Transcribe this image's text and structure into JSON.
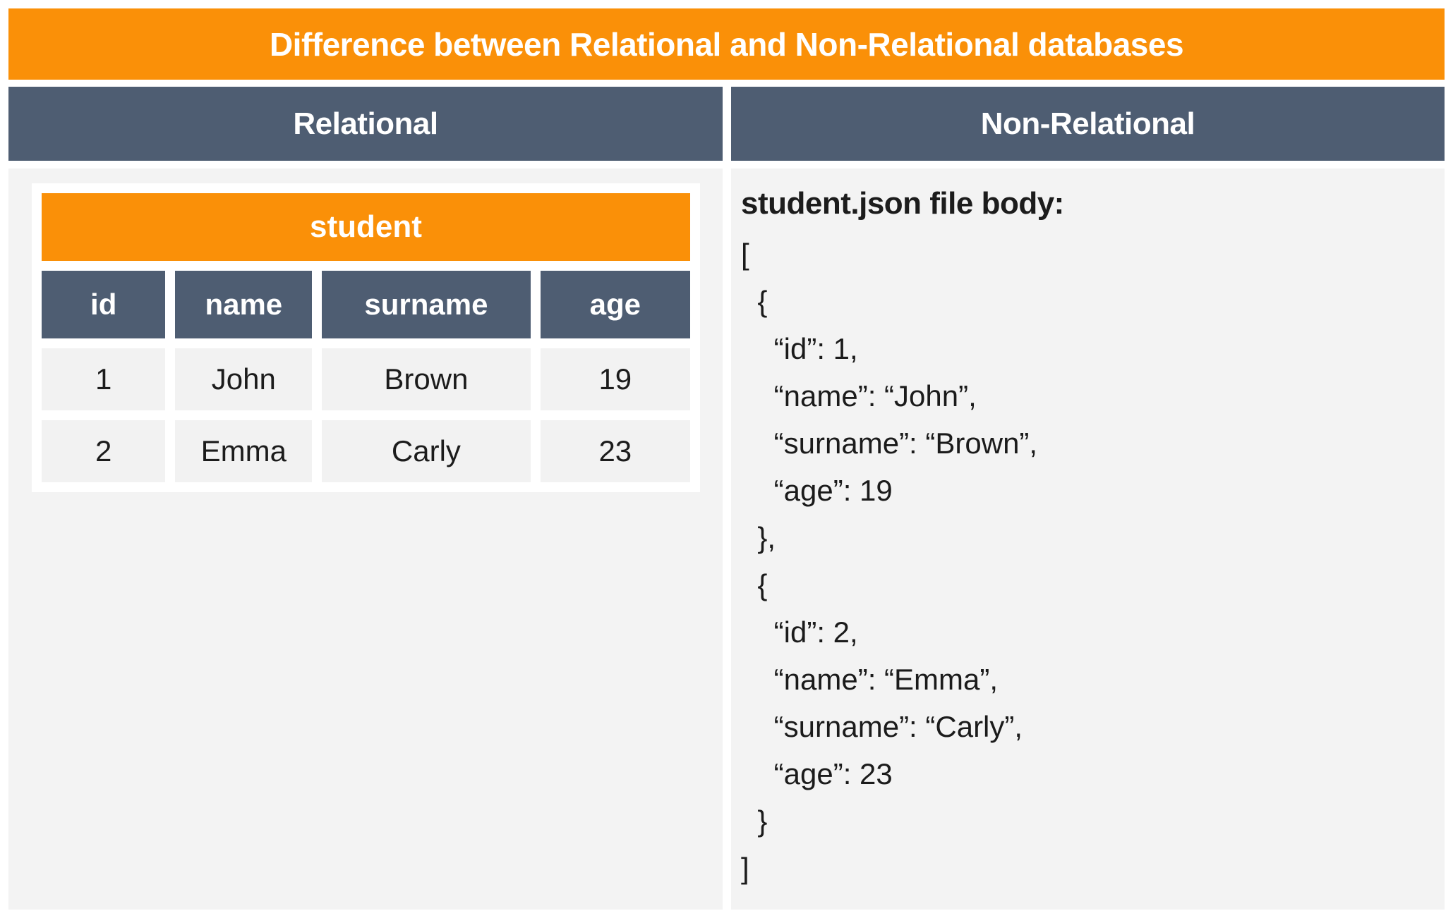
{
  "title": "Difference between Relational and Non-Relational databases",
  "colors": {
    "accent_orange": "#fa9008",
    "header_slate": "#4e5d72",
    "panel_gray": "#f3f3f3",
    "cell_gray": "#f2f2f2",
    "text_dark": "#1c1c1c",
    "white": "#ffffff"
  },
  "columns": {
    "left_header": "Relational",
    "right_header": "Non-Relational"
  },
  "relational": {
    "table_title": "student",
    "headers": [
      "id",
      "name",
      "surname",
      "age"
    ],
    "rows": [
      [
        "1",
        "John",
        "Brown",
        "19"
      ],
      [
        "2",
        "Emma",
        "Carly",
        "23"
      ]
    ]
  },
  "non_relational": {
    "heading": "student.json file body:",
    "json_lines": [
      "[",
      "  {",
      "    “id”: 1,",
      "    “name”: “John”,",
      "    “surname”: “Brown”,",
      "    “age”: 19",
      "  },",
      "  {",
      "    “id”: 2,",
      "    “name”: “Emma”,",
      "    “surname”: “Carly”,",
      "    “age”: 23",
      "  }",
      "]"
    ]
  }
}
